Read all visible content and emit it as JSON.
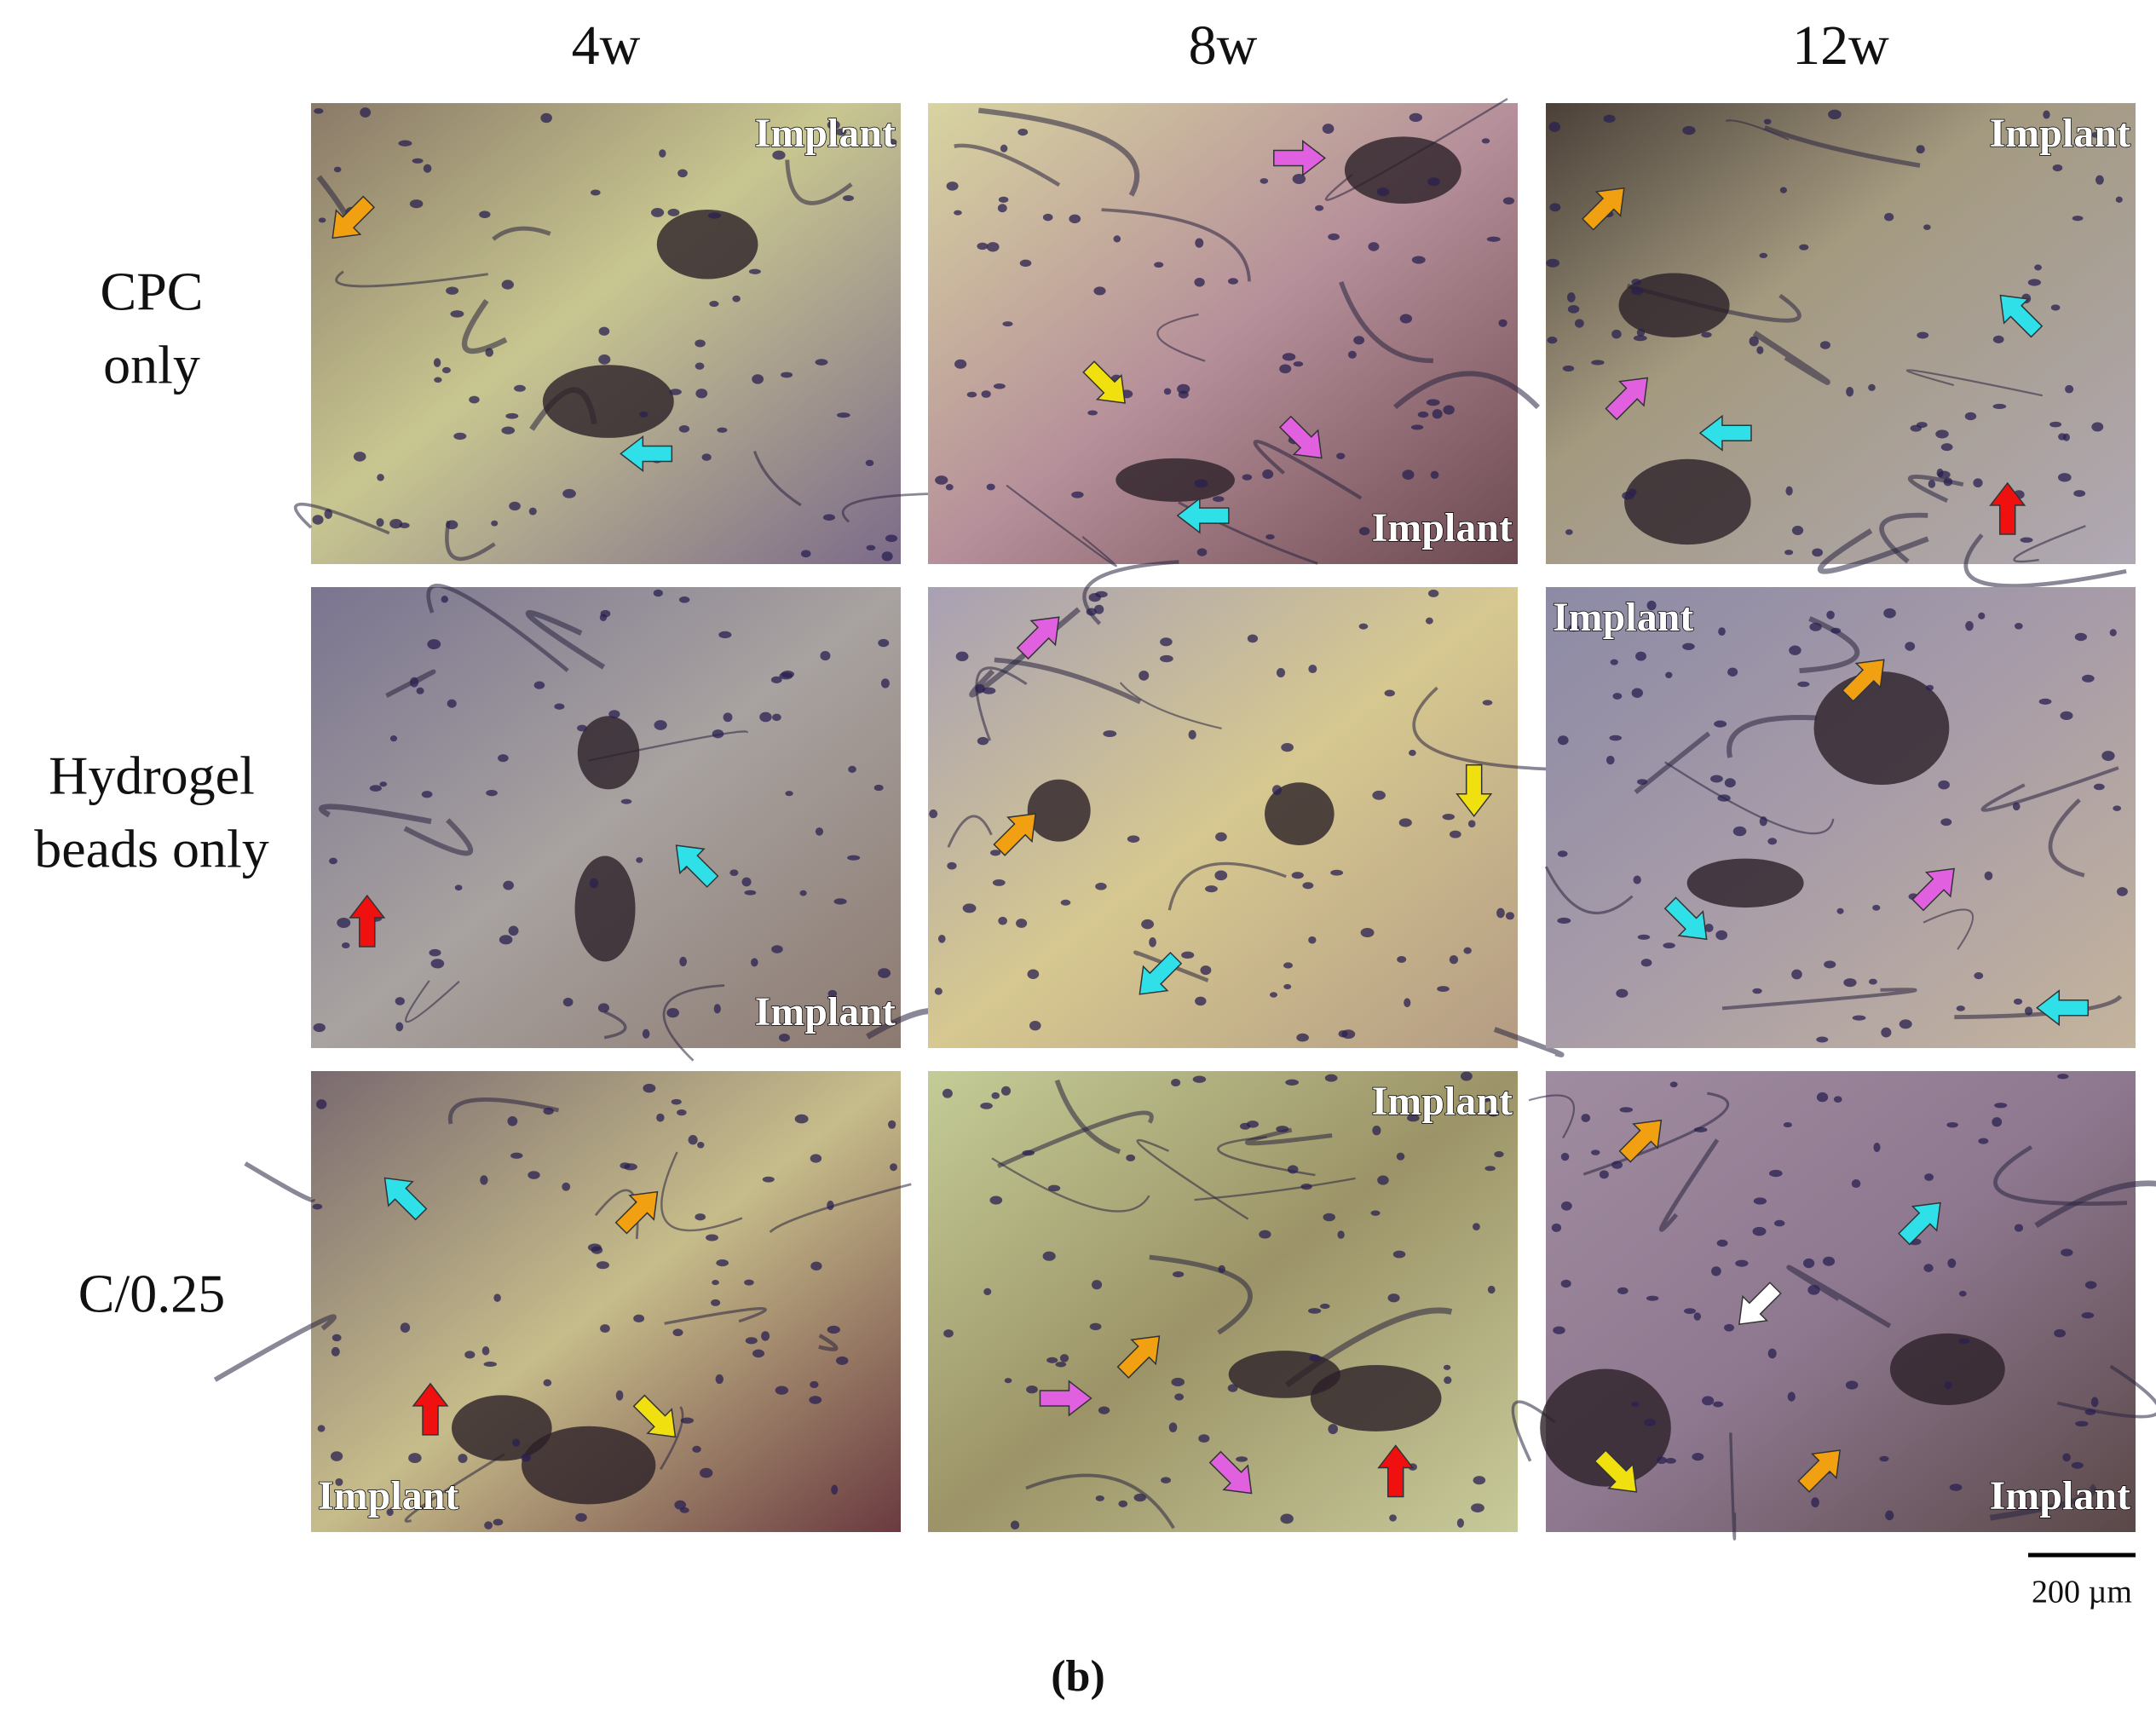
{
  "columns": [
    "4w",
    "8w",
    "12w"
  ],
  "rows": [
    [
      "CPC",
      "only"
    ],
    [
      "Hydrogel",
      "beads only"
    ],
    [
      "C/0.25"
    ]
  ],
  "panels": [
    [
      "Implant",
      "Implant",
      "Implant"
    ],
    [
      "Implant",
      null,
      "Implant"
    ],
    [
      "Implant",
      "Implant",
      "Implant"
    ]
  ],
  "scale_bar": "200 µm",
  "caption": "(b)"
}
